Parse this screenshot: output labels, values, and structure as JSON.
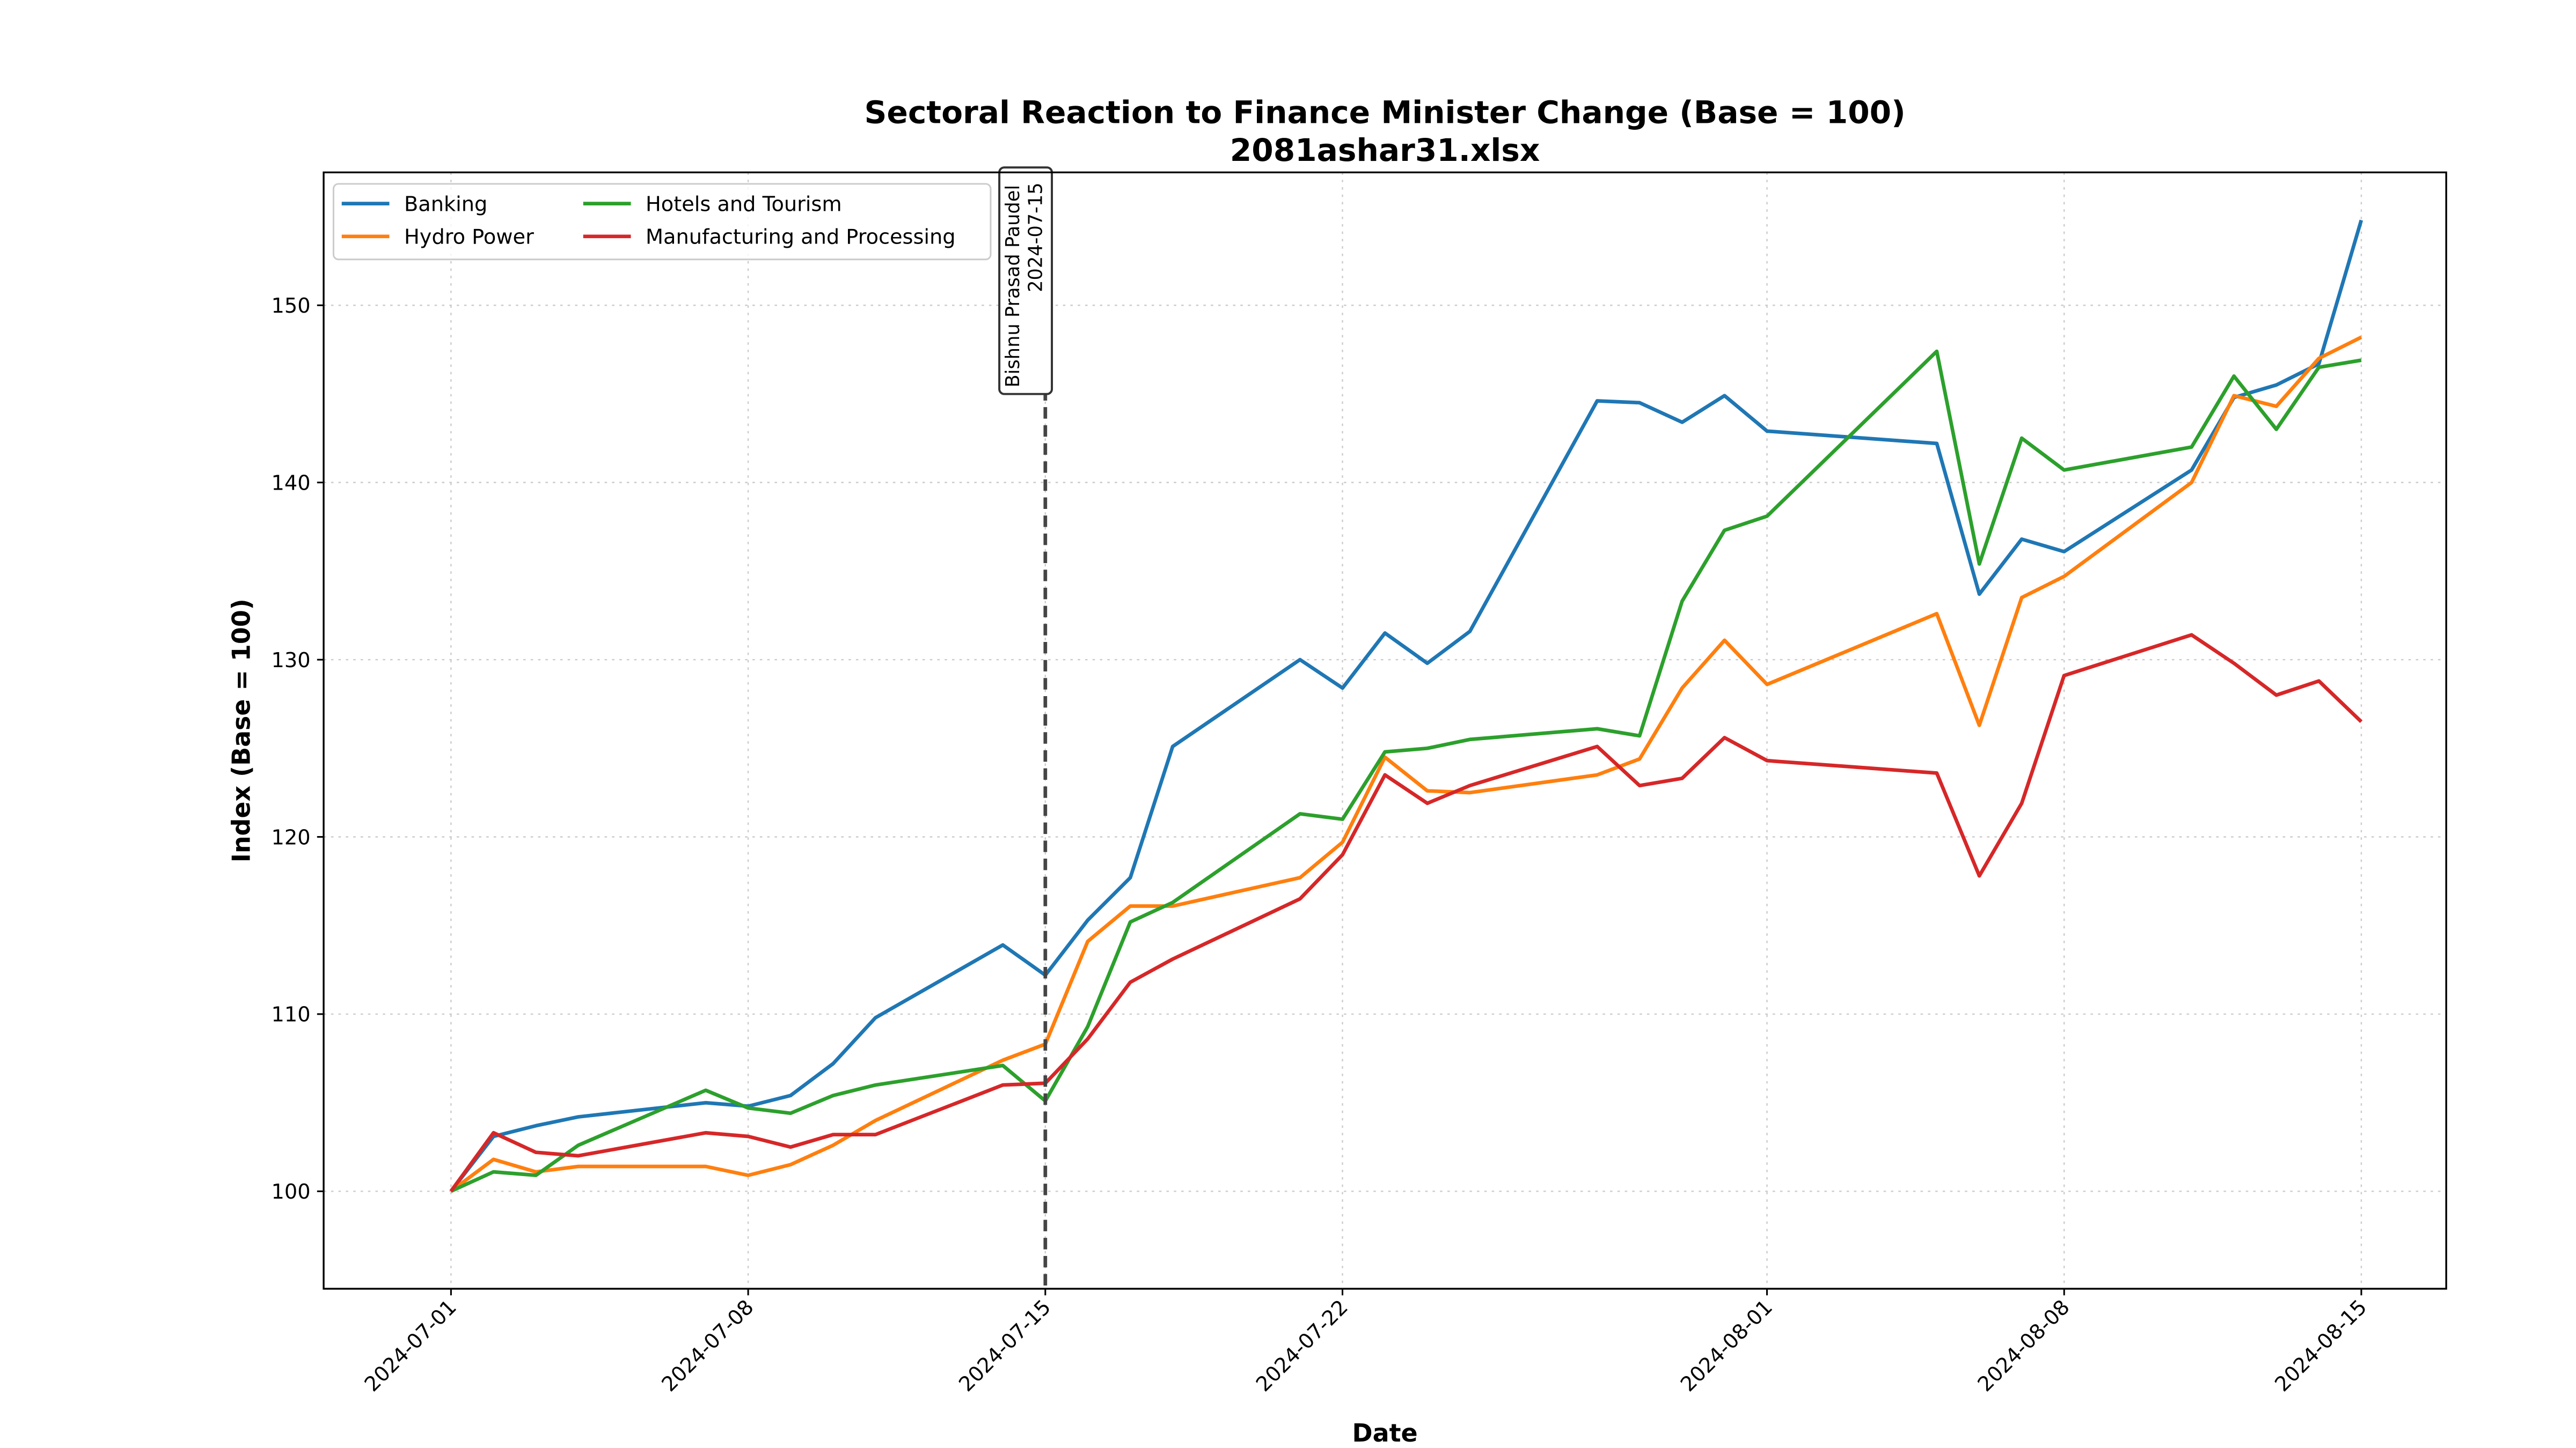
{
  "chart_data": {
    "type": "line",
    "title": "Sectoral Reaction to Finance Minister Change (Base = 100)",
    "subtitle": "2081ashar31.xlsx",
    "xlabel": "Date",
    "ylabel": "Index (Base = 100)",
    "ylim": [
      94.5,
      157.5
    ],
    "xlim": [
      "2024-06-28",
      "2024-08-17"
    ],
    "grid": true,
    "legend_position": "top-left",
    "x_ticks": [
      "2024-07-01",
      "2024-07-08",
      "2024-07-15",
      "2024-07-22",
      "2024-08-01",
      "2024-08-08",
      "2024-08-15"
    ],
    "y_ticks": [
      100,
      110,
      120,
      130,
      140,
      150
    ],
    "annotation": {
      "date": "2024-07-15",
      "line1": "Bishnu Prasad Paudel",
      "line2": "2024-07-15"
    },
    "x": [
      "2024-07-01",
      "2024-07-02",
      "2024-07-03",
      "2024-07-04",
      "2024-07-07",
      "2024-07-08",
      "2024-07-09",
      "2024-07-10",
      "2024-07-11",
      "2024-07-14",
      "2024-07-15",
      "2024-07-16",
      "2024-07-17",
      "2024-07-18",
      "2024-07-21",
      "2024-07-22",
      "2024-07-23",
      "2024-07-24",
      "2024-07-25",
      "2024-07-28",
      "2024-07-29",
      "2024-07-30",
      "2024-07-31",
      "2024-08-01",
      "2024-08-05",
      "2024-08-06",
      "2024-08-07",
      "2024-08-08",
      "2024-08-11",
      "2024-08-12",
      "2024-08-13",
      "2024-08-14",
      "2024-08-15"
    ],
    "series": [
      {
        "name": "Banking",
        "color": "#1f77b4",
        "values": [
          100,
          103.1,
          103.7,
          104.2,
          105.0,
          104.8,
          105.4,
          107.2,
          109.8,
          113.9,
          112.2,
          115.3,
          117.7,
          125.1,
          130.0,
          128.4,
          131.5,
          129.8,
          131.6,
          144.6,
          144.5,
          143.4,
          144.9,
          142.9,
          142.2,
          133.7,
          136.8,
          136.1,
          140.7,
          144.8,
          145.5,
          146.7,
          154.8
        ]
      },
      {
        "name": "Hydro Power",
        "color": "#ff7f0e",
        "values": [
          100,
          101.8,
          101.1,
          101.4,
          101.4,
          100.9,
          101.5,
          102.6,
          104.0,
          107.4,
          108.3,
          114.1,
          116.1,
          116.1,
          117.7,
          119.7,
          124.5,
          122.6,
          122.5,
          123.5,
          124.4,
          128.4,
          131.1,
          128.6,
          132.6,
          126.3,
          133.5,
          134.7,
          140.0,
          144.9,
          144.3,
          147.0,
          148.2
        ]
      },
      {
        "name": "Hotels and Tourism",
        "color": "#2ca02c",
        "values": [
          100,
          101.1,
          100.9,
          102.6,
          105.7,
          104.7,
          104.4,
          105.4,
          106.0,
          107.1,
          105.1,
          109.3,
          115.2,
          116.3,
          121.3,
          121.0,
          124.8,
          125.0,
          125.5,
          126.1,
          125.7,
          133.3,
          137.3,
          138.1,
          147.4,
          135.4,
          142.5,
          140.7,
          142.0,
          146.0,
          143.0,
          146.5,
          146.9
        ]
      },
      {
        "name": "Manufacturing and Processing",
        "color": "#d62728",
        "values": [
          100,
          103.3,
          102.2,
          102.0,
          103.3,
          103.1,
          102.5,
          103.2,
          103.2,
          106.0,
          106.1,
          108.6,
          111.8,
          113.1,
          116.5,
          119.0,
          123.5,
          121.9,
          122.9,
          125.1,
          122.9,
          123.3,
          125.6,
          124.3,
          123.6,
          117.8,
          121.9,
          129.1,
          131.4,
          129.8,
          128.0,
          128.8,
          126.5
        ]
      }
    ]
  }
}
